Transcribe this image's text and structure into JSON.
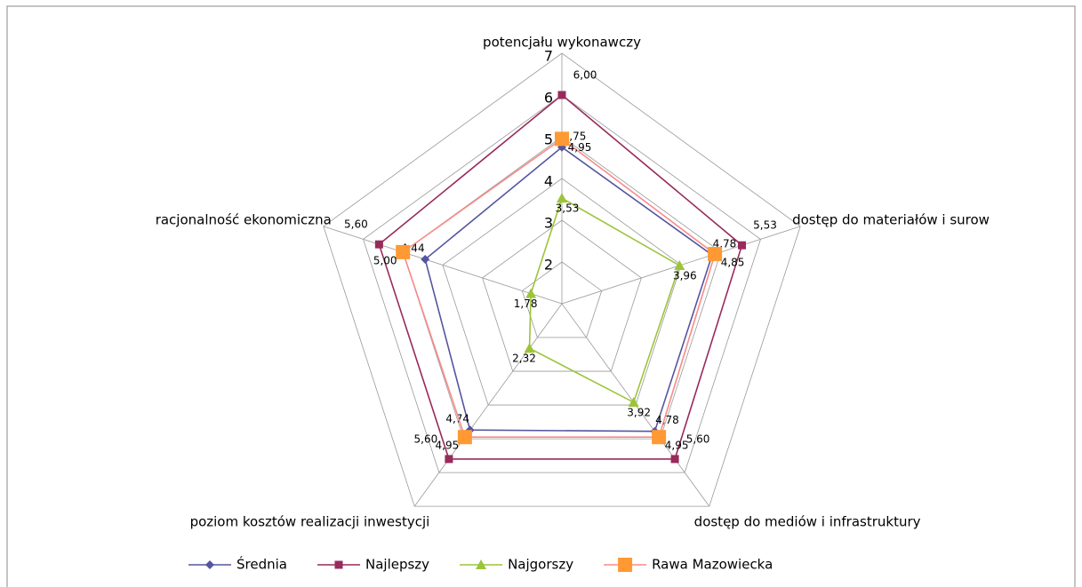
{
  "chart_data": {
    "type": "radar",
    "categories": [
      "potencjału wykonawczy",
      "dostęp do materiałów i surow",
      "dostęp do mediów i infrastruktury",
      "poziom kosztów realizacji inwestycji",
      "racjonalność ekonomiczna"
    ],
    "ylim": [
      1,
      7
    ],
    "yticks": [
      2,
      3,
      4,
      5,
      6,
      7
    ],
    "grid": true,
    "legend": "bottom",
    "series": [
      {
        "name": "Średnia",
        "color": "#55559f",
        "marker": "diamond",
        "values": [
          4.75,
          4.78,
          4.78,
          4.74,
          4.44
        ],
        "value_labels": [
          "4,75",
          "4,78",
          "4,78",
          "4,74",
          "4,44"
        ]
      },
      {
        "name": "Najlepszy",
        "color": "#982a5c",
        "marker": "square",
        "values": [
          6.0,
          5.53,
          5.6,
          5.6,
          5.6
        ],
        "value_labels": [
          "6,00",
          "5,53",
          "5,60",
          "5,60",
          "5,60"
        ]
      },
      {
        "name": "Najgorszy",
        "color": "#9cc43a",
        "marker": "triangle",
        "values": [
          3.53,
          3.96,
          3.92,
          2.32,
          1.78
        ],
        "value_labels": [
          "3,53",
          "3,96",
          "3,92",
          "2,32",
          "1,78"
        ]
      },
      {
        "name": "Rawa Mazowiecka",
        "color": "#f98a8a",
        "marker_color": "#ff9933",
        "marker": "bigsquare",
        "values": [
          4.95,
          4.85,
          4.95,
          4.95,
          5.0
        ],
        "value_labels": [
          "4,95",
          "4,85",
          "4,95",
          "4,95",
          "5,00"
        ]
      }
    ]
  }
}
